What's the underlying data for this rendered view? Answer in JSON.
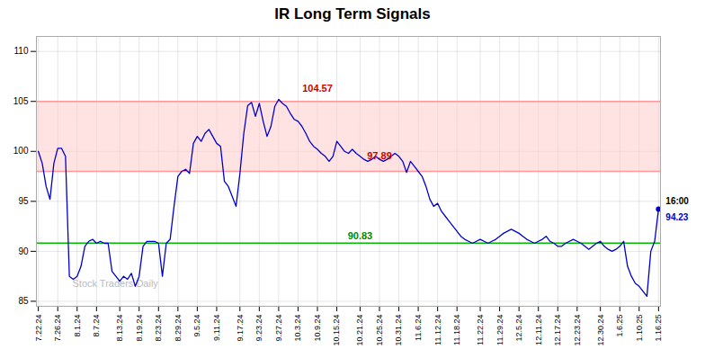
{
  "chart_data": {
    "type": "line",
    "title": "IR Long Term Signals",
    "categories": [
      "7.22.24",
      null,
      null,
      null,
      null,
      "7.26.24",
      null,
      null,
      null,
      null,
      "8.1.24",
      null,
      null,
      null,
      null,
      "8.7.24",
      null,
      null,
      null,
      null,
      null,
      "8.13.24",
      null,
      null,
      null,
      null,
      "8.19.24",
      null,
      null,
      null,
      null,
      "8.23.24",
      null,
      null,
      null,
      null,
      "8.29.24",
      null,
      null,
      null,
      null,
      "9.5.24",
      null,
      null,
      null,
      null,
      "9.11.24",
      null,
      null,
      null,
      null,
      null,
      "9.17.24",
      null,
      null,
      null,
      null,
      "9.23.24",
      null,
      null,
      null,
      null,
      "9.27.24",
      null,
      null,
      null,
      null,
      "10.3.24",
      null,
      null,
      null,
      null,
      "10.9.24",
      null,
      null,
      null,
      null,
      "10.15.24",
      null,
      null,
      null,
      null,
      null,
      "10.21.24",
      null,
      null,
      null,
      null,
      "10.25.24",
      null,
      null,
      null,
      null,
      "10.31.24",
      null,
      null,
      null,
      null,
      "11.6.24",
      null,
      null,
      null,
      null,
      "11.12.24",
      null,
      null,
      null,
      null,
      "11.18.24",
      null,
      null,
      null,
      null,
      null,
      "11.22.24",
      null,
      null,
      null,
      null,
      "11.29.24",
      null,
      null,
      null,
      null,
      "12.5.24",
      null,
      null,
      null,
      null,
      "12.11.24",
      null,
      null,
      null,
      null,
      "12.17.24",
      null,
      null,
      null,
      null,
      "12.23.24",
      null,
      null,
      null,
      null,
      null,
      "12.30.24",
      null,
      null,
      null,
      null,
      "1.6.25",
      null,
      null,
      null,
      null,
      "1.10.25",
      null,
      null,
      null,
      null,
      "1.16.25"
    ],
    "values": [
      100.0,
      98.8,
      96.5,
      95.2,
      98.8,
      100.3,
      100.3,
      99.5,
      87.5,
      87.2,
      87.5,
      88.5,
      90.5,
      91.0,
      91.2,
      90.8,
      91.0,
      90.8,
      90.8,
      88.0,
      87.5,
      87.0,
      87.5,
      87.2,
      87.8,
      86.5,
      87.5,
      90.5,
      91.0,
      91.0,
      91.0,
      90.8,
      87.5,
      90.8,
      91.2,
      94.5,
      97.5,
      98.0,
      98.2,
      97.8,
      100.8,
      101.5,
      101.0,
      101.8,
      102.2,
      101.5,
      100.8,
      100.5,
      97.0,
      96.5,
      95.5,
      94.5,
      97.8,
      101.8,
      104.57,
      104.9,
      103.5,
      104.8,
      103.0,
      101.5,
      102.5,
      104.5,
      105.2,
      104.8,
      104.5,
      103.8,
      103.2,
      103.0,
      102.5,
      101.8,
      101.0,
      100.5,
      100.2,
      99.8,
      99.5,
      99.0,
      99.5,
      101.0,
      100.5,
      100.0,
      99.8,
      100.2,
      99.8,
      99.5,
      99.2,
      99.0,
      99.2,
      99.5,
      99.2,
      99.0,
      99.2,
      99.5,
      99.8,
      99.5,
      99.0,
      97.89,
      99.0,
      98.5,
      98.0,
      97.5,
      96.5,
      95.2,
      94.5,
      94.8,
      94.0,
      93.5,
      93.0,
      92.5,
      92.0,
      91.5,
      91.2,
      91.0,
      90.8,
      91.0,
      91.2,
      91.0,
      90.8,
      91.0,
      91.2,
      91.5,
      91.8,
      92.0,
      92.2,
      92.0,
      91.8,
      91.5,
      91.2,
      91.0,
      90.8,
      91.0,
      91.2,
      91.5,
      91.0,
      90.8,
      90.5,
      90.5,
      90.8,
      91.0,
      91.2,
      91.0,
      90.8,
      90.5,
      90.2,
      90.5,
      90.8,
      91.0,
      90.5,
      90.2,
      90.0,
      90.2,
      90.5,
      91.0,
      88.5,
      87.5,
      86.8,
      86.5,
      86.0,
      85.5,
      90.0,
      91.0,
      94.23
    ],
    "color": "#0000cc",
    "band": {
      "y1": 98.0,
      "y2": 105.0,
      "color": "#ffcccc"
    },
    "hlines": [
      {
        "y": 105.0,
        "color": "#ff9999"
      },
      {
        "y": 98.0,
        "color": "#ff9999"
      },
      {
        "y": 90.83,
        "color": "#00bb00"
      }
    ],
    "annotations": [
      {
        "text": "104.57",
        "x": "10.9.24",
        "y": 106.0,
        "color": "#cc0000"
      },
      {
        "text": "97.89",
        "x": "10.25.24",
        "y": 99.2,
        "color": "#cc0000"
      },
      {
        "text": "90.83",
        "x": "10.21.24",
        "y": 91.2,
        "color": "#008800"
      }
    ],
    "end_labels": [
      {
        "text": "16:00",
        "color": "#000000"
      },
      {
        "text": "94.23",
        "color": "#0000cc"
      }
    ],
    "watermark": "Stock Traders Daily",
    "ylim": [
      84.5,
      111.5
    ],
    "yticks": [
      85,
      90,
      95,
      100,
      105,
      110
    ],
    "grid": true
  }
}
